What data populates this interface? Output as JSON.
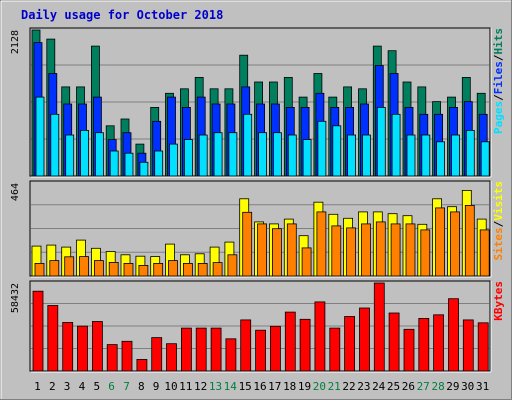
{
  "chart_data": {
    "type": "bar",
    "title": "Daily usage for October 2018",
    "categories": [
      "1",
      "2",
      "3",
      "4",
      "5",
      "6",
      "7",
      "8",
      "9",
      "10",
      "11",
      "12",
      "13",
      "14",
      "15",
      "16",
      "17",
      "18",
      "19",
      "20",
      "21",
      "22",
      "23",
      "24",
      "25",
      "26",
      "27",
      "28",
      "29",
      "30",
      "31"
    ],
    "weekend_days": [
      "6",
      "7",
      "13",
      "14",
      "20",
      "21",
      "27",
      "28"
    ],
    "colors": {
      "background": "#c0c0c0",
      "hits": "#007f5f",
      "files": "#0030ff",
      "pages": "#00e0ff",
      "visits": "#ffff00",
      "sites": "#ff8000",
      "kbytes": "#ff0000",
      "title": "#0000cc",
      "weekday_label": "#000000",
      "weekend_label": "#007f3f"
    },
    "panels": [
      {
        "id": "hits-files-pages",
        "ymax_label": "2128",
        "ylim": [
          0,
          2128
        ],
        "legend": [
          "Pages",
          "/",
          "Files",
          "/",
          "Hits"
        ],
        "series": [
          {
            "name": "Hits",
            "values": [
              2128,
              1995,
              1298,
              1298,
              1894,
              731,
              831,
              465,
              1000,
              1206,
              1271,
              1437,
              1271,
              1271,
              1761,
              1370,
              1370,
              1437,
              1150,
              1494,
              1150,
              1298,
              1271,
              1894,
              1827,
              1370,
              1298,
              1085,
              1150,
              1437,
              1206
            ]
          },
          {
            "name": "Files",
            "values": [
              1945,
              1494,
              1050,
              1050,
              1150,
              531,
              631,
              333,
              798,
              1150,
              1000,
              1150,
              1050,
              1050,
              1298,
              1050,
              1050,
              1000,
              1000,
              1206,
              1000,
              1000,
              1050,
              1610,
              1494,
              1000,
              900,
              900,
              1000,
              1085,
              900
            ]
          },
          {
            "name": "Pages",
            "values": [
              1150,
              900,
              598,
              665,
              631,
              365,
              333,
              200,
              365,
              465,
              531,
              598,
              631,
              631,
              900,
              631,
              631,
              598,
              531,
              798,
              731,
              598,
              598,
              1000,
              900,
              598,
              598,
              498,
              598,
              665,
              498
            ]
          }
        ]
      },
      {
        "id": "visits-sites",
        "ymax_label": "464",
        "ylim": [
          0,
          464
        ],
        "legend": [
          "Sites",
          "/",
          "Visits"
        ],
        "series": [
          {
            "name": "Visits",
            "values": [
              149,
              154,
              144,
              179,
              138,
              122,
              106,
              99,
              97,
              159,
              106,
              111,
              144,
              169,
              385,
              270,
              260,
              284,
              201,
              368,
              308,
              288,
              320,
              320,
              311,
              301,
              258,
              385,
              346,
              427,
              284
            ]
          },
          {
            "name": "Sites",
            "values": [
              63,
              77,
              96,
              97,
              77,
              68,
              63,
              53,
              63,
              77,
              63,
              63,
              67,
              106,
              318,
              260,
              236,
              260,
              140,
              320,
              250,
              240,
              260,
              270,
              260,
              260,
              230,
              340,
              320,
              352,
              230
            ]
          }
        ]
      },
      {
        "id": "kbytes",
        "ymax_label": "58432",
        "ylim": [
          0,
          58432
        ],
        "legend": [
          "KBytes"
        ],
        "series": [
          {
            "name": "KBytes",
            "values": [
              53000,
              43500,
              32300,
              29800,
              32900,
              17500,
              19700,
              7700,
              22200,
              18100,
              28500,
              28500,
              28500,
              21400,
              33900,
              27100,
              29700,
              39100,
              34300,
              45900,
              28500,
              36200,
              41800,
              58432,
              38500,
              27700,
              34900,
              37300,
              48000,
              33900,
              32000
            ]
          }
        ]
      }
    ]
  }
}
